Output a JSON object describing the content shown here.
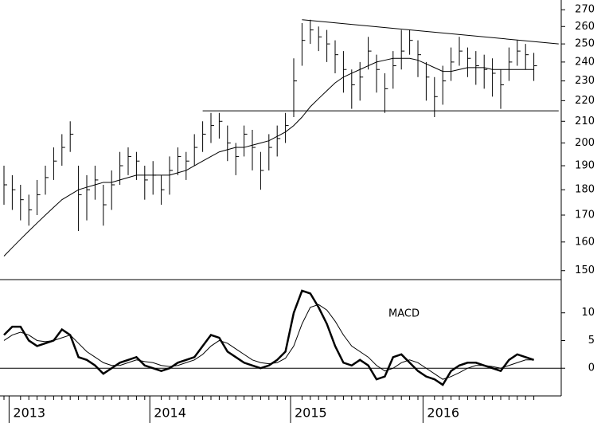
{
  "chart_data": [
    {
      "type": "ohlc",
      "log": true,
      "color": "#000000",
      "ylim": [
        147,
        276
      ],
      "yticks": [
        150,
        160,
        170,
        180,
        190,
        200,
        210,
        220,
        230,
        240,
        250,
        260,
        270
      ],
      "ohlc": {
        "high": [
          190,
          186,
          182,
          178,
          184,
          190,
          198,
          204,
          210,
          190,
          186,
          190,
          182,
          188,
          196,
          198,
          196,
          190,
          192,
          186,
          194,
          198,
          196,
          204,
          210,
          214,
          214,
          208,
          200,
          208,
          206,
          196,
          204,
          208,
          214,
          242,
          262,
          264,
          260,
          258,
          252,
          246,
          236,
          240,
          254,
          244,
          234,
          246,
          258,
          258,
          252,
          240,
          232,
          238,
          248,
          254,
          248,
          246,
          244,
          242,
          236,
          248,
          252,
          250,
          245
        ],
        "low": [
          174,
          172,
          168,
          166,
          170,
          178,
          184,
          190,
          196,
          164,
          168,
          176,
          166,
          172,
          182,
          186,
          184,
          176,
          178,
          174,
          178,
          186,
          184,
          190,
          196,
          200,
          202,
          192,
          186,
          194,
          188,
          180,
          188,
          194,
          200,
          212,
          238,
          250,
          246,
          240,
          234,
          224,
          216,
          220,
          236,
          224,
          214,
          226,
          236,
          244,
          232,
          220,
          212,
          218,
          230,
          238,
          232,
          228,
          226,
          222,
          216,
          230,
          238,
          236,
          230
        ],
        "close": [
          182,
          180,
          176,
          172,
          178,
          185,
          192,
          198,
          204,
          178,
          180,
          184,
          174,
          182,
          190,
          194,
          192,
          184,
          186,
          180,
          188,
          194,
          192,
          198,
          204,
          208,
          210,
          200,
          194,
          204,
          198,
          188,
          198,
          202,
          208,
          230,
          252,
          258,
          254,
          250,
          244,
          236,
          228,
          232,
          246,
          236,
          226,
          238,
          246,
          252,
          244,
          232,
          222,
          230,
          240,
          246,
          242,
          238,
          236,
          234,
          228,
          240,
          246,
          244,
          238
        ]
      },
      "lines": [
        {
          "color": "#000000",
          "values": [
            155,
            158,
            161,
            164,
            167,
            170,
            173,
            176,
            178,
            180,
            181,
            182,
            183,
            183,
            184,
            185,
            186,
            186,
            186,
            186,
            186,
            187,
            188,
            190,
            192,
            194,
            196,
            197,
            198,
            198,
            199,
            200,
            201,
            203,
            205,
            208,
            212,
            217,
            221,
            225,
            229,
            232,
            234,
            236,
            238,
            240,
            241,
            242,
            242,
            242,
            241,
            239,
            237,
            235,
            235,
            236,
            237,
            237,
            237,
            236,
            236,
            236,
            236,
            236,
            236
          ]
        }
      ],
      "trendlines": [
        {
          "x": [
            36,
            67
          ],
          "y": [
            264,
            250
          ]
        },
        {
          "x": [
            24,
            67
          ],
          "y": [
            215,
            215
          ]
        }
      ]
    },
    {
      "type": "line",
      "annotation": "MACD",
      "ylim": [
        -5,
        16
      ],
      "yticks": [
        0,
        5,
        10
      ],
      "categories": [
        null,
        "2013",
        null,
        null,
        null,
        null,
        null,
        null,
        null,
        null,
        null,
        null,
        null,
        null,
        null,
        null,
        null,
        null,
        "2014",
        null,
        null,
        null,
        null,
        null,
        null,
        null,
        null,
        null,
        null,
        null,
        null,
        null,
        null,
        null,
        null,
        "2015",
        null,
        null,
        null,
        null,
        null,
        null,
        null,
        null,
        null,
        null,
        null,
        null,
        null,
        null,
        null,
        "2016",
        null,
        null,
        null,
        null,
        null,
        null,
        null,
        null,
        null,
        null,
        null,
        null,
        null
      ],
      "series": [
        {
          "color": "#000000",
          "width": 2.5,
          "values": [
            6,
            7.5,
            7.5,
            5,
            4,
            4.5,
            5,
            7,
            6,
            2,
            1.5,
            0.5,
            -1,
            0,
            1,
            1.5,
            2,
            0.5,
            0,
            -0.5,
            0,
            1,
            1.5,
            2,
            4,
            6,
            5.5,
            3,
            2,
            1,
            0.5,
            0,
            0.5,
            1.5,
            3,
            10,
            14,
            13.5,
            11,
            8,
            4,
            1,
            0.5,
            1.5,
            0.5,
            -2,
            -1.5,
            2,
            2.5,
            1,
            -0.5,
            -1.5,
            -2,
            -3,
            -0.5,
            0.5,
            1,
            1,
            0.5,
            0,
            -0.5,
            1.5,
            2.5,
            2,
            1.5
          ]
        },
        {
          "color": "#000000",
          "width": 1,
          "values": [
            5,
            6,
            6.5,
            6,
            5,
            4.8,
            5,
            5.5,
            6,
            4.5,
            3,
            2,
            1,
            0.5,
            0.5,
            1,
            1.5,
            1.2,
            1,
            0.5,
            0.3,
            0.5,
            1,
            1.5,
            2.5,
            4,
            5,
            4.5,
            3.5,
            2.5,
            1.5,
            1,
            0.8,
            1,
            1.8,
            4,
            8,
            11,
            11.5,
            10.5,
            8.5,
            6,
            4,
            3,
            2,
            0.5,
            -0.5,
            0,
            1,
            1.5,
            1,
            0,
            -1,
            -2,
            -1.5,
            -0.8,
            0,
            0.5,
            0.5,
            0.3,
            0,
            0.5,
            1,
            1.5,
            1.5
          ]
        }
      ]
    }
  ]
}
